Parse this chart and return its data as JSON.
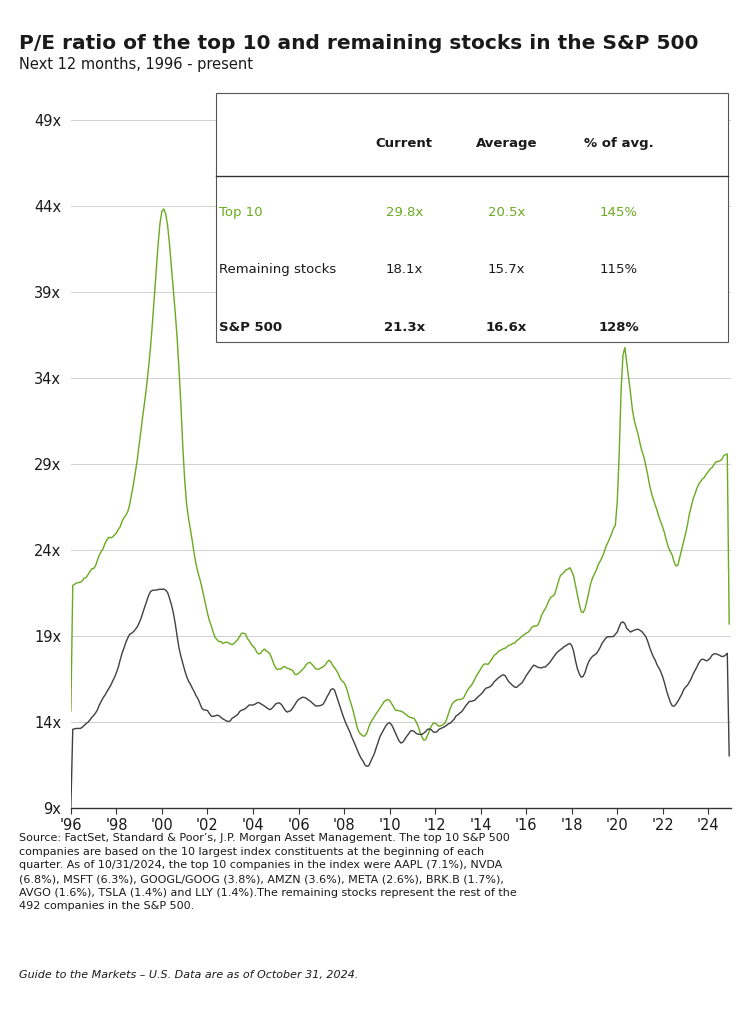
{
  "title": "P/E ratio of the top 10 and remaining stocks in the S&P 500",
  "subtitle": "Next 12 months, 1996 - present",
  "title_color": "#1a1a1a",
  "subtitle_color": "#1a1a1a",
  "green_color": "#6aaa1f",
  "dark_color": "#404040",
  "background_color": "#ffffff",
  "yticks": [
    9,
    14,
    19,
    24,
    29,
    34,
    39,
    44,
    49
  ],
  "ytick_labels": [
    "9x",
    "14x",
    "19x",
    "24x",
    "29x",
    "34x",
    "39x",
    "44x",
    "49x"
  ],
  "xtick_years": [
    1996,
    1998,
    2000,
    2002,
    2004,
    2006,
    2008,
    2010,
    2012,
    2014,
    2016,
    2018,
    2020,
    2022,
    2024
  ],
  "xtick_labels": [
    "'96",
    "'98",
    "'00",
    "'02",
    "'04",
    "'06",
    "'08",
    "'10",
    "'12",
    "'14",
    "'16",
    "'18",
    "'20",
    "'22",
    "'24"
  ],
  "table_headers": [
    "",
    "Current",
    "Average",
    "% of avg."
  ],
  "table_rows": [
    [
      "Top 10",
      "29.8x",
      "20.5x",
      "145%"
    ],
    [
      "Remaining stocks",
      "18.1x",
      "15.7x",
      "115%"
    ],
    [
      "S&P 500",
      "21.3x",
      "16.6x",
      "128%"
    ]
  ],
  "source_text": "Source: FactSet, Standard & Poor’s, J.P. Morgan Asset Management. The top 10 S&P 500\ncompanies are based on the 10 largest index constituents at the beginning of each\nquarter. As of 10/31/2024, the top 10 companies in the index were AAPL (7.1%), NVDA\n(6.8%), MSFT (6.3%), GOOGL/GOOG (3.8%), AMZN (3.6%), META (2.6%), BRK.B (1.7%),\nAVGO (1.6%), TSLA (1.4%) and LLY (1.4%).The remaining stocks represent the rest of the\n492 companies in the S&P 500.",
  "guide_text": "Guide to the Markets – U.S. Data are as of October 31, 2024.",
  "ylim": [
    9,
    51
  ],
  "xlim_start": 1996.0,
  "xlim_end": 2025.0
}
